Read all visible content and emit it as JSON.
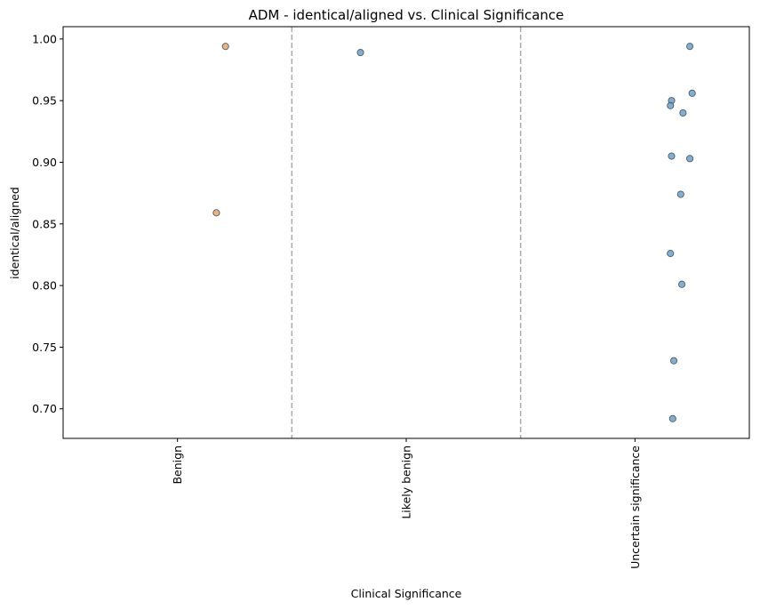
{
  "chart_data": {
    "type": "scatter",
    "title": "ADM - identical/aligned vs. Clinical Significance",
    "xlabel": "Clinical Significance",
    "ylabel": "identical/aligned",
    "categories": [
      "Benign",
      "Likely benign",
      "Uncertain significance"
    ],
    "ylim": [
      0.676,
      1.01
    ],
    "yticks": [
      0.7,
      0.75,
      0.8,
      0.85,
      0.9,
      0.95,
      1.0
    ],
    "ytick_labels": [
      "0.70",
      "0.75",
      "0.80",
      "0.85",
      "0.90",
      "0.95",
      "1.00"
    ],
    "separators": "dashed vertical lines between categories",
    "grid": false,
    "legend": "none",
    "colors": {
      "Benign": "#e8a56a",
      "Likely benign": "#6f9fc6",
      "Uncertain significance": "#6f9fc6",
      "separator": "#aaaaaa"
    },
    "points": [
      {
        "category": "Benign",
        "jitter": 0.21,
        "y": 0.994
      },
      {
        "category": "Benign",
        "jitter": 0.17,
        "y": 0.859
      },
      {
        "category": "Likely benign",
        "jitter": -0.2,
        "y": 0.989
      },
      {
        "category": "Uncertain significance",
        "jitter": 0.24,
        "y": 0.994
      },
      {
        "category": "Uncertain significance",
        "jitter": 0.25,
        "y": 0.956
      },
      {
        "category": "Uncertain significance",
        "jitter": 0.16,
        "y": 0.95
      },
      {
        "category": "Uncertain significance",
        "jitter": 0.155,
        "y": 0.946
      },
      {
        "category": "Uncertain significance",
        "jitter": 0.21,
        "y": 0.94
      },
      {
        "category": "Uncertain significance",
        "jitter": 0.16,
        "y": 0.905
      },
      {
        "category": "Uncertain significance",
        "jitter": 0.24,
        "y": 0.903
      },
      {
        "category": "Uncertain significance",
        "jitter": 0.2,
        "y": 0.874
      },
      {
        "category": "Uncertain significance",
        "jitter": 0.155,
        "y": 0.826
      },
      {
        "category": "Uncertain significance",
        "jitter": 0.205,
        "y": 0.801
      },
      {
        "category": "Uncertain significance",
        "jitter": 0.17,
        "y": 0.739
      },
      {
        "category": "Uncertain significance",
        "jitter": 0.165,
        "y": 0.692
      }
    ]
  }
}
